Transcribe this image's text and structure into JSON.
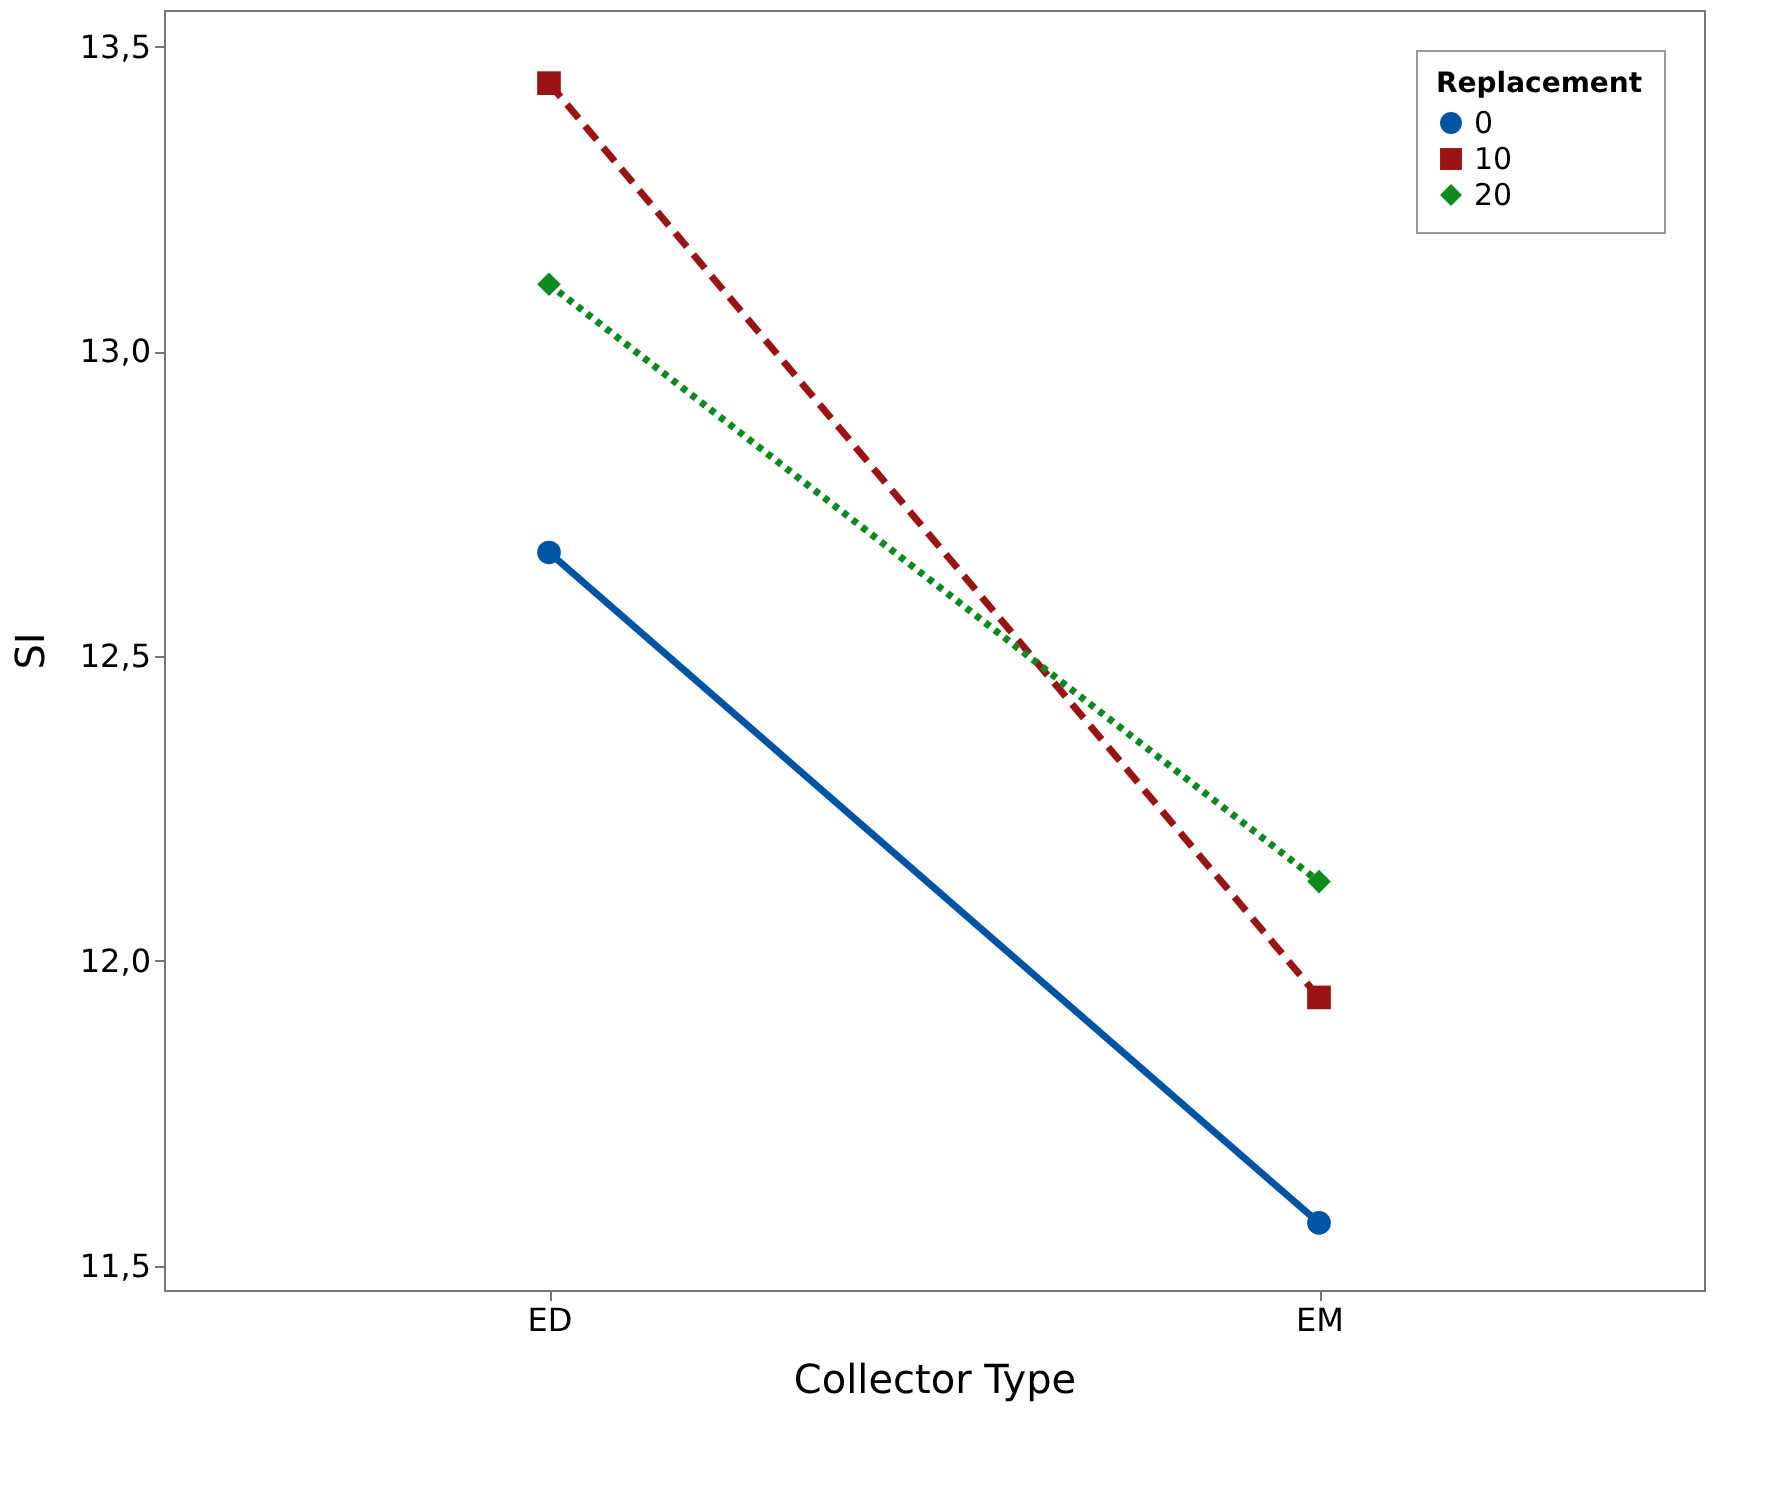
{
  "chart_data": {
    "type": "line",
    "xlabel": "Collector Type",
    "ylabel": "SI",
    "legend_title": "Replacement",
    "legend": "top right",
    "grid": false,
    "categories": [
      "ED",
      "EM"
    ],
    "ylim": [
      11.46,
      13.56
    ],
    "yticks": [
      {
        "value": 11.5,
        "label": "11,5"
      },
      {
        "value": 12.0,
        "label": "12,0"
      },
      {
        "value": 12.5,
        "label": "12,5"
      },
      {
        "value": 13.0,
        "label": "13,0"
      },
      {
        "value": 13.5,
        "label": "13,5"
      }
    ],
    "series": [
      {
        "name": "0",
        "color": "#0054a6",
        "values": [
          12.67,
          11.57
        ],
        "marker": "circle",
        "line_style": "solid"
      },
      {
        "name": "10",
        "color": "#9b1414",
        "values": [
          13.44,
          11.94
        ],
        "marker": "square",
        "line_style": "dashed"
      },
      {
        "name": "20",
        "color": "#0b8a1e",
        "values": [
          13.11,
          12.13
        ],
        "marker": "diamond",
        "line_style": "dotted"
      }
    ]
  }
}
